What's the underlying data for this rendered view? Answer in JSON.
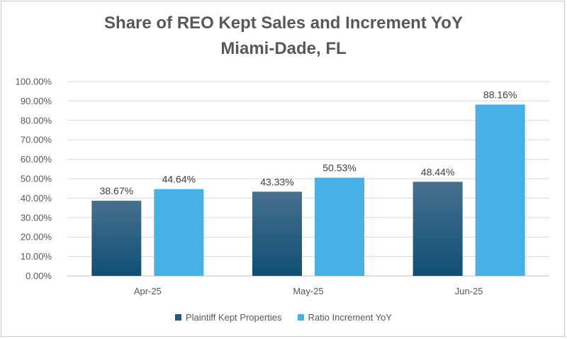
{
  "chart_data": {
    "type": "bar",
    "title": "Share of REO Kept Sales and Increment YoY",
    "subtitle": "Miami-Dade, FL",
    "categories": [
      "Apr-25",
      "May-25",
      "Jun-25"
    ],
    "series": [
      {
        "name": "Plaintiff Kept Properties",
        "values": [
          38.67,
          43.33,
          48.44
        ],
        "labels": [
          "38.67%",
          "43.33%",
          "48.44%"
        ],
        "color": "#1f5c80",
        "color_top": "#3c6a8e"
      },
      {
        "name": "Ratio Increment YoY",
        "values": [
          44.64,
          50.53,
          88.16
        ],
        "labels": [
          "44.64%",
          "50.53%",
          "88.16%"
        ],
        "color": "#47b0e4"
      }
    ],
    "ylim": [
      0,
      100
    ],
    "yticks": [
      0,
      10,
      20,
      30,
      40,
      50,
      60,
      70,
      80,
      90,
      100
    ],
    "ytick_labels": [
      "0.00%",
      "10.00%",
      "20.00%",
      "30.00%",
      "40.00%",
      "50.00%",
      "60.00%",
      "70.00%",
      "80.00%",
      "90.00%",
      "100.00%"
    ],
    "xlabel": "",
    "ylabel": "",
    "grid": true,
    "legend_position": "bottom"
  }
}
